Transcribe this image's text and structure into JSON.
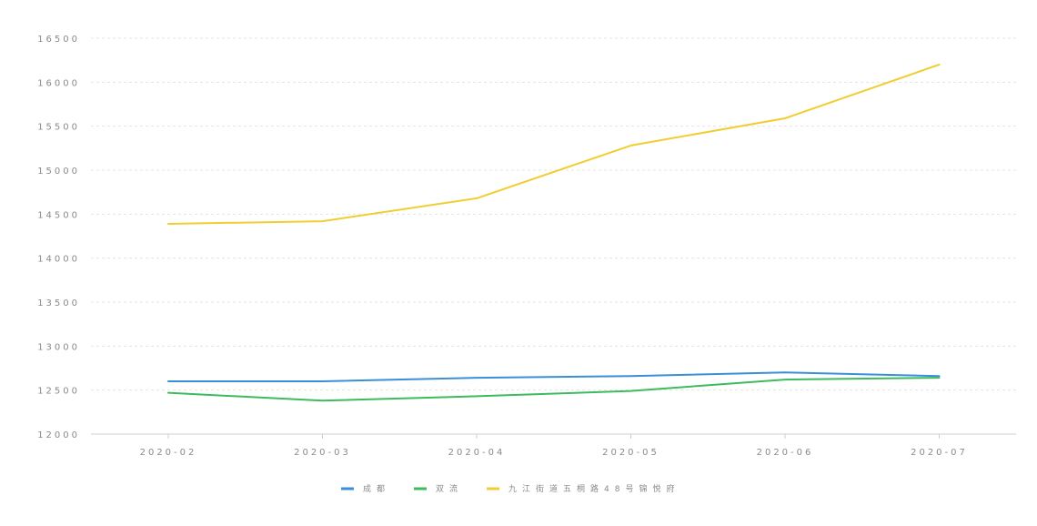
{
  "heading": "",
  "chart_data": {
    "type": "line",
    "title": "",
    "xlabel": "",
    "ylabel": "",
    "categories": [
      "2020-02",
      "2020-03",
      "2020-04",
      "2020-05",
      "2020-06",
      "2020-07"
    ],
    "ylim": [
      12000,
      16500
    ],
    "yticks": [
      12000,
      12500,
      13000,
      13500,
      14000,
      14500,
      15000,
      15500,
      16000,
      16500
    ],
    "grid": true,
    "legend_position": "bottom-center",
    "series": [
      {
        "name": "成都",
        "color": "#3a8fd9",
        "values": [
          12600,
          12600,
          12640,
          12660,
          12700,
          12660
        ]
      },
      {
        "name": "双流",
        "color": "#3dbb5e",
        "values": [
          12470,
          12380,
          12430,
          12490,
          12620,
          12640
        ]
      },
      {
        "name": "九江街道五桐路48号锦悦府",
        "color": "#f2cd32",
        "values": [
          14390,
          14420,
          14680,
          15280,
          15590,
          16200
        ]
      }
    ]
  }
}
